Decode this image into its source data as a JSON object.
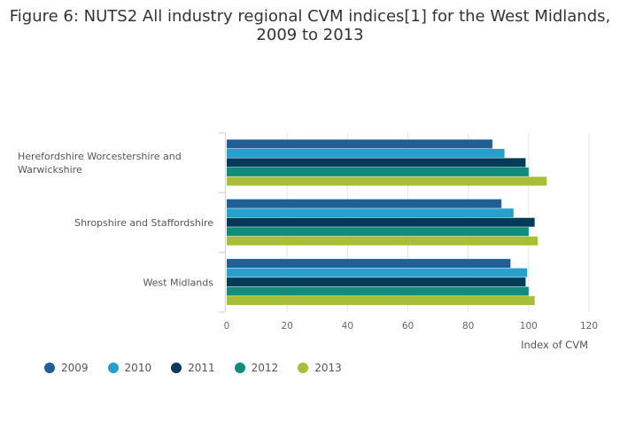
{
  "chart_data": {
    "type": "bar",
    "orientation": "horizontal",
    "title_lines": [
      "Figure 6: NUTS2 All industry regional CVM indices[1] for the West Midlands,",
      "2009 to 2013"
    ],
    "categories": [
      {
        "label_lines": [
          "Herefordshire Worcestershire and",
          "Warwickshire"
        ]
      },
      {
        "label_lines": [
          "Shropshire and Staffordshire"
        ]
      },
      {
        "label_lines": [
          "West Midlands"
        ]
      }
    ],
    "series": [
      {
        "name": "2009",
        "color": "#206095",
        "values": [
          88,
          91,
          94
        ]
      },
      {
        "name": "2010",
        "color": "#27a0cc",
        "values": [
          92,
          95,
          99.5
        ]
      },
      {
        "name": "2011",
        "color": "#003c57",
        "values": [
          99,
          102,
          99
        ]
      },
      {
        "name": "2012",
        "color": "#118c7b",
        "values": [
          100,
          100,
          100
        ]
      },
      {
        "name": "2013",
        "color": "#a8bd3a",
        "values": [
          106,
          103,
          102
        ]
      }
    ],
    "xlabel": "Index of CVM",
    "ylabel": "",
    "xlim": [
      0,
      120
    ],
    "xticks": [
      "0",
      "20",
      "40",
      "60",
      "80",
      "100",
      "120"
    ],
    "grid": true,
    "legend_position": "bottom-left"
  }
}
